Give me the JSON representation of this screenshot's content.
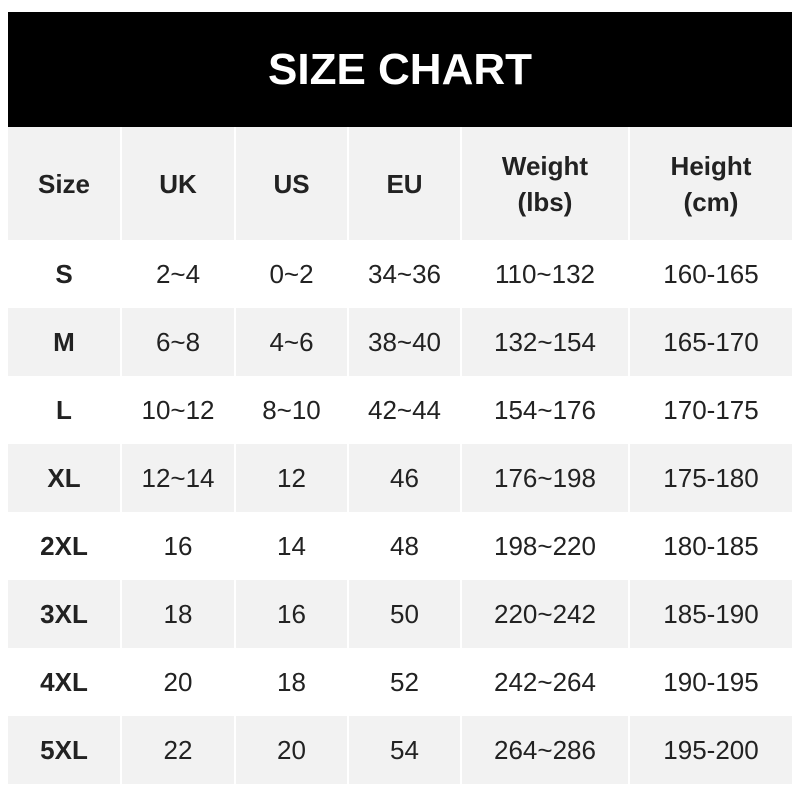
{
  "title": "SIZE CHART",
  "headers": [
    "Size",
    "UK",
    "US",
    "EU",
    "Weight\n(lbs)",
    "Height\n(cm)"
  ],
  "header_lines": [
    [
      "Size"
    ],
    [
      "UK"
    ],
    [
      "US"
    ],
    [
      "EU"
    ],
    [
      "Weight",
      "(lbs)"
    ],
    [
      "Height",
      "(cm)"
    ]
  ],
  "rows": [
    [
      "S",
      "2~4",
      "0~2",
      "34~36",
      "110~132",
      "160-165"
    ],
    [
      "M",
      "6~8",
      "4~6",
      "38~40",
      "132~154",
      "165-170"
    ],
    [
      "L",
      "10~12",
      "8~10",
      "42~44",
      "154~176",
      "170-175"
    ],
    [
      "XL",
      "12~14",
      "12",
      "46",
      "176~198",
      "175-180"
    ],
    [
      "2XL",
      "16",
      "14",
      "48",
      "198~220",
      "180-185"
    ],
    [
      "3XL",
      "18",
      "16",
      "50",
      "220~242",
      "185-190"
    ],
    [
      "4XL",
      "20",
      "18",
      "52",
      "242~264",
      "190-195"
    ],
    [
      "5XL",
      "22",
      "20",
      "54",
      "264~286",
      "195-200"
    ]
  ]
}
